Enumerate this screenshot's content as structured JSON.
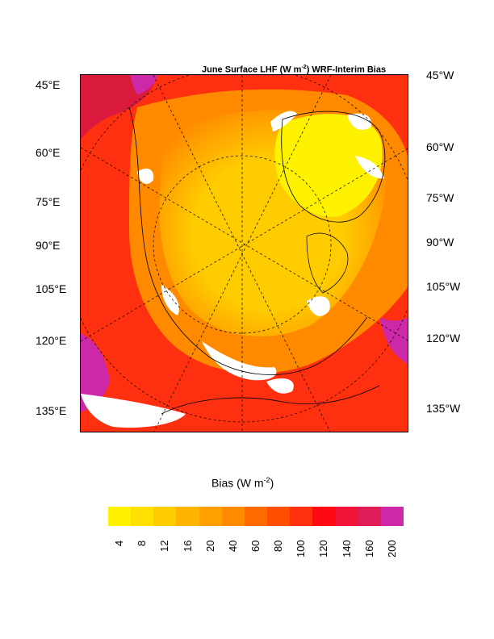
{
  "title": {
    "prefix": "June Surface LHF (W m",
    "exponent": "-2",
    "suffix": ") WRF-Interim Bias"
  },
  "left_labels": [
    "45°E",
    "60°E",
    "75°E",
    "90°E",
    "105°E",
    "120°E",
    "135°E"
  ],
  "right_labels": [
    "45°W",
    "60°W",
    "75°W",
    "90°W",
    "105°W",
    "120°W",
    "135°W"
  ],
  "colorbar": {
    "title_prefix": "Bias (W m",
    "title_exponent": "-2",
    "title_suffix": ")",
    "colors": [
      "#fff200",
      "#ffe000",
      "#ffcc00",
      "#ffb400",
      "#ffa000",
      "#ff8a00",
      "#ff6a00",
      "#ff4e00",
      "#ff3010",
      "#ff0a14",
      "#f01438",
      "#e01c58",
      "#cc28a8"
    ],
    "ticks": [
      "4",
      "8",
      "12",
      "16",
      "20",
      "40",
      "60",
      "80",
      "100",
      "120",
      "140",
      "160",
      "200"
    ]
  },
  "map_colors": {
    "land_low": "#d91a3c",
    "land_high": "#cc28a8",
    "ocean_warm": "#ff3010",
    "mid": "#ff8a00",
    "arctic": "#ffcc00",
    "ice_edge": "#fff200",
    "snow": "#ffffff"
  }
}
